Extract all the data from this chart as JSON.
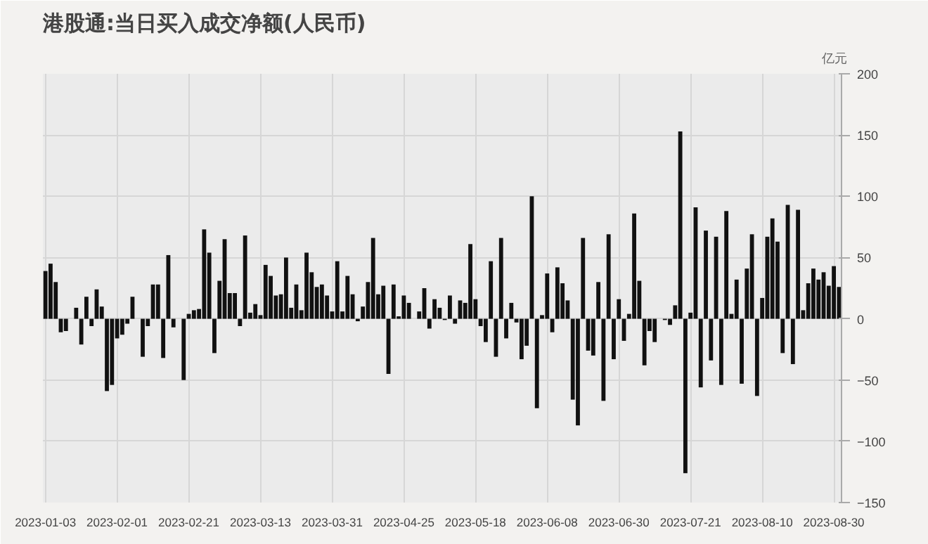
{
  "chart_data": {
    "type": "bar",
    "title": "港股通:当日买入成交净额(人民币)",
    "ylabel": "亿元",
    "categories": [
      "2023-01-03",
      null,
      null,
      null,
      null,
      null,
      null,
      null,
      null,
      null,
      null,
      null,
      null,
      null,
      "2023-02-01",
      null,
      null,
      null,
      null,
      null,
      null,
      null,
      null,
      null,
      null,
      null,
      null,
      null,
      "2023-02-21",
      null,
      null,
      null,
      null,
      null,
      null,
      null,
      null,
      null,
      null,
      null,
      null,
      null,
      "2023-03-13",
      null,
      null,
      null,
      null,
      null,
      null,
      null,
      null,
      null,
      null,
      null,
      null,
      null,
      "2023-03-31",
      null,
      null,
      null,
      null,
      null,
      null,
      null,
      null,
      null,
      null,
      null,
      null,
      null,
      "2023-04-25",
      null,
      null,
      null,
      null,
      null,
      null,
      null,
      null,
      null,
      null,
      null,
      null,
      null,
      "2023-05-18",
      null,
      null,
      null,
      null,
      null,
      null,
      null,
      null,
      null,
      null,
      null,
      null,
      null,
      "2023-06-08",
      null,
      null,
      null,
      null,
      null,
      null,
      null,
      null,
      null,
      null,
      null,
      null,
      null,
      "2023-06-30",
      null,
      null,
      null,
      null,
      null,
      null,
      null,
      null,
      null,
      null,
      null,
      null,
      null,
      "2023-07-21",
      null,
      null,
      null,
      null,
      null,
      null,
      null,
      null,
      null,
      null,
      null,
      null,
      null,
      "2023-08-10",
      null,
      null,
      null,
      null,
      null,
      null,
      null,
      null,
      null,
      null,
      null,
      null,
      null,
      "2023-08-30",
      null
    ],
    "values": [
      39,
      45,
      30,
      -11,
      -10,
      0,
      9,
      -21,
      18,
      -6,
      24,
      10,
      -59,
      -54,
      -16,
      -13,
      -4,
      18,
      0,
      -31,
      -6,
      28,
      28,
      -32,
      52,
      -7,
      0,
      -50,
      4,
      7,
      8,
      73,
      54,
      -28,
      31,
      65,
      21,
      21,
      -6,
      68,
      5,
      12,
      3,
      44,
      35,
      19,
      20,
      50,
      9,
      28,
      7,
      54,
      38,
      26,
      28,
      19,
      6,
      47,
      6,
      35,
      20,
      -2,
      10,
      30,
      66,
      20,
      27,
      -45,
      28,
      2,
      19,
      13,
      0,
      6,
      25,
      -8,
      16,
      9,
      -1,
      19,
      -4,
      15,
      13,
      61,
      16,
      -6,
      -19,
      47,
      -31,
      66,
      -16,
      13,
      -3,
      -33,
      -22,
      100,
      -73,
      3,
      37,
      -11,
      42,
      29,
      15,
      -66,
      -87,
      66,
      -26,
      -30,
      30,
      -67,
      69,
      -33,
      16,
      -18,
      4,
      86,
      31,
      -38,
      -10,
      -19,
      0,
      -1,
      -5,
      11,
      153,
      -126,
      5,
      91,
      -56,
      72,
      -34,
      67,
      -54,
      88,
      4,
      32,
      -53,
      41,
      69,
      -63,
      17,
      67,
      82,
      63,
      -28,
      93,
      -37,
      89,
      7,
      29,
      41,
      32,
      38,
      27,
      43,
      26
    ],
    "color": "#111111",
    "ylim": [
      -150,
      200
    ],
    "yticks": [
      -150,
      -100,
      -50,
      0,
      50,
      100,
      150,
      200
    ],
    "grid": true
  }
}
